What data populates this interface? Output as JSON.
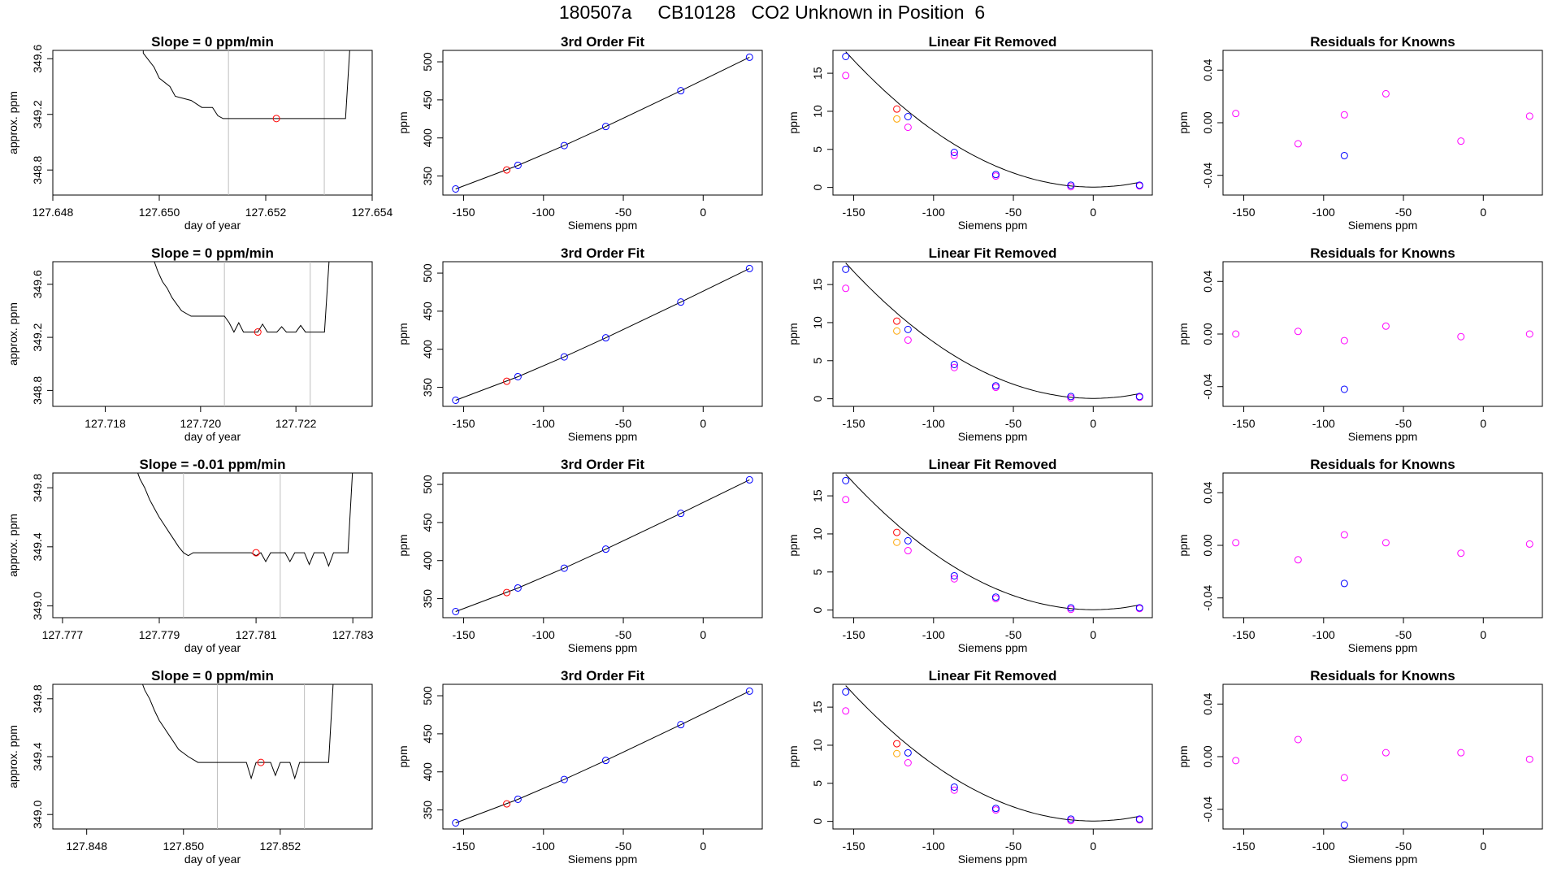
{
  "page": {
    "title": "180507a     CB10128   CO2 Unknown in Position  6"
  },
  "colors": {
    "blue": "#0000ff",
    "red": "#ff0000",
    "magenta": "#ff00ff",
    "orange": "#ffa500",
    "gray": "#bebebe",
    "black": "#000000"
  },
  "chart_data": [
    {
      "type": "line",
      "title": "Slope =  0  ppm/min",
      "xlabel": "day of year",
      "ylabel": "approx. ppm",
      "xlim": [
        127.648,
        127.654
      ],
      "ylim": [
        348.62,
        349.66
      ],
      "xticks": [
        "127.648",
        "127.650",
        "127.652",
        "127.654"
      ],
      "yticks": [
        "348.8",
        "349.2",
        "349.6"
      ],
      "vlines": [
        127.6513,
        127.6531
      ],
      "marker": {
        "x": 127.6522,
        "y": 349.17
      },
      "trace": [
        [
          127.6497,
          349.72
        ],
        [
          127.6497,
          349.64
        ],
        [
          127.6499,
          349.54
        ],
        [
          127.65,
          349.46
        ],
        [
          127.6502,
          349.4
        ],
        [
          127.6503,
          349.33
        ],
        [
          127.6506,
          349.3
        ],
        [
          127.6508,
          349.25
        ],
        [
          127.651,
          349.25
        ],
        [
          127.6511,
          349.19
        ],
        [
          127.6512,
          349.17
        ],
        [
          127.6535,
          349.17
        ],
        [
          127.6536,
          349.8
        ]
      ]
    },
    {
      "type": "scatter",
      "title": "3rd Order Fit",
      "xlabel": "Siemens ppm",
      "ylabel": "ppm",
      "xlim": [
        -163,
        37
      ],
      "ylim": [
        325,
        515
      ],
      "xticks": [
        "-150",
        "-100",
        "-50",
        "0"
      ],
      "yticks": [
        "350",
        "400",
        "450",
        "500"
      ],
      "points": [
        [
          -155,
          333
        ],
        [
          -116,
          364
        ],
        [
          -87,
          390
        ],
        [
          -61,
          415
        ],
        [
          -14,
          462
        ],
        [
          29,
          506
        ]
      ],
      "red_point": [
        -123,
        358
      ]
    },
    {
      "type": "scatter",
      "title": "Linear Fit Removed",
      "xlabel": "Siemens ppm",
      "ylabel": "ppm",
      "xlim": [
        -163,
        37
      ],
      "ylim": [
        -1,
        18
      ],
      "xticks": [
        "-150",
        "-100",
        "-50",
        "0"
      ],
      "yticks": [
        "0",
        "5",
        "10",
        "15"
      ],
      "blue": [
        [
          -155,
          17.2
        ],
        [
          -116,
          9.3
        ],
        [
          -87,
          4.6
        ],
        [
          -61,
          1.7
        ],
        [
          -14,
          0.3
        ],
        [
          29,
          0.3
        ]
      ],
      "magenta": [
        [
          -155,
          14.7
        ],
        [
          -116,
          7.9
        ],
        [
          -87,
          4.2
        ],
        [
          -61,
          1.5
        ],
        [
          -14,
          0.1
        ],
        [
          29,
          0.2
        ]
      ],
      "red": [
        [
          -123,
          10.3
        ]
      ],
      "orange": [
        [
          -123,
          9.0
        ]
      ]
    },
    {
      "type": "scatter",
      "title": "Residuals for Knowns",
      "xlabel": "Siemens ppm",
      "ylabel": "ppm",
      "xlim": [
        -163,
        37
      ],
      "ylim": [
        -0.055,
        0.055
      ],
      "xticks": [
        "-150",
        "-100",
        "-50",
        "0"
      ],
      "yticks": [
        "-0.04",
        "0.00",
        "0.04"
      ],
      "magenta": [
        [
          -155,
          0.007
        ],
        [
          -116,
          -0.016
        ],
        [
          -87,
          0.006
        ],
        [
          -61,
          0.022
        ],
        [
          -14,
          -0.014
        ],
        [
          29,
          0.005
        ]
      ],
      "blue": [
        [
          -87,
          -0.025
        ]
      ]
    },
    {
      "type": "line",
      "title": "Slope =  0  ppm/min",
      "xlabel": "day of year",
      "ylabel": "approx. ppm",
      "xlim": [
        127.7169,
        127.7236
      ],
      "ylim": [
        348.68,
        349.77
      ],
      "xticks": [
        "127.718",
        "127.720",
        "127.722"
      ],
      "yticks": [
        "348.8",
        "349.2",
        "349.6"
      ],
      "vlines": [
        127.7205,
        127.7223
      ],
      "marker": {
        "x": 127.7212,
        "y": 349.24
      },
      "trace": [
        [
          127.719,
          349.8
        ],
        [
          127.7191,
          349.7
        ],
        [
          127.7192,
          349.62
        ],
        [
          127.7193,
          349.57
        ],
        [
          127.7194,
          349.5
        ],
        [
          127.7195,
          349.45
        ],
        [
          127.7196,
          349.4
        ],
        [
          127.7198,
          349.36
        ],
        [
          127.7205,
          349.36
        ],
        [
          127.7206,
          349.31
        ],
        [
          127.7207,
          349.24
        ],
        [
          127.7208,
          349.31
        ],
        [
          127.7209,
          349.24
        ],
        [
          127.7212,
          349.24
        ],
        [
          127.7213,
          349.3
        ],
        [
          127.7214,
          349.24
        ],
        [
          127.7216,
          349.24
        ],
        [
          127.7217,
          349.28
        ],
        [
          127.7218,
          349.24
        ],
        [
          127.722,
          349.24
        ],
        [
          127.7221,
          349.29
        ],
        [
          127.7222,
          349.24
        ],
        [
          127.7226,
          349.24
        ],
        [
          127.7227,
          349.8
        ]
      ]
    },
    {
      "type": "scatter",
      "title": "3rd Order Fit",
      "xlabel": "Siemens ppm",
      "ylabel": "ppm",
      "xlim": [
        -163,
        37
      ],
      "ylim": [
        325,
        515
      ],
      "xticks": [
        "-150",
        "-100",
        "-50",
        "0"
      ],
      "yticks": [
        "350",
        "400",
        "450",
        "500"
      ],
      "points": [
        [
          -155,
          333
        ],
        [
          -116,
          364
        ],
        [
          -87,
          390
        ],
        [
          -61,
          415
        ],
        [
          -14,
          462
        ],
        [
          29,
          506
        ]
      ],
      "red_point": [
        -123,
        358
      ]
    },
    {
      "type": "scatter",
      "title": "Linear Fit Removed",
      "xlabel": "Siemens ppm",
      "ylabel": "ppm",
      "xlim": [
        -163,
        37
      ],
      "ylim": [
        -1,
        18
      ],
      "xticks": [
        "-150",
        "-100",
        "-50",
        "0"
      ],
      "yticks": [
        "0",
        "5",
        "10",
        "15"
      ],
      "blue": [
        [
          -155,
          17.0
        ],
        [
          -116,
          9.1
        ],
        [
          -87,
          4.5
        ],
        [
          -61,
          1.7
        ],
        [
          -14,
          0.3
        ],
        [
          29,
          0.3
        ]
      ],
      "magenta": [
        [
          -155,
          14.5
        ],
        [
          -116,
          7.7
        ],
        [
          -87,
          4.1
        ],
        [
          -61,
          1.5
        ],
        [
          -14,
          0.1
        ],
        [
          29,
          0.2
        ]
      ],
      "red": [
        [
          -123,
          10.2
        ]
      ],
      "orange": [
        [
          -123,
          8.9
        ]
      ]
    },
    {
      "type": "scatter",
      "title": "Residuals for Knowns",
      "xlabel": "Siemens ppm",
      "ylabel": "ppm",
      "xlim": [
        -163,
        37
      ],
      "ylim": [
        -0.055,
        0.055
      ],
      "xticks": [
        "-150",
        "-100",
        "-50",
        "0"
      ],
      "yticks": [
        "-0.04",
        "0.00",
        "0.04"
      ],
      "magenta": [
        [
          -155,
          0.0
        ],
        [
          -116,
          0.002
        ],
        [
          -87,
          -0.005
        ],
        [
          -61,
          0.006
        ],
        [
          -14,
          -0.002
        ],
        [
          29,
          0.0
        ]
      ],
      "blue": [
        [
          -87,
          -0.042
        ]
      ]
    },
    {
      "type": "line",
      "title": "Slope =  -0.01  ppm/min",
      "xlabel": "day of year",
      "ylabel": "approx. ppm",
      "xlim": [
        127.7768,
        127.7834
      ],
      "ylim": [
        348.92,
        349.9
      ],
      "xticks": [
        "127.777",
        "127.779",
        "127.781",
        "127.783"
      ],
      "yticks": [
        "349.0",
        "349.4",
        "349.8"
      ],
      "vlines": [
        127.7795,
        127.7815
      ],
      "marker": {
        "x": 127.781,
        "y": 349.36
      },
      "trace": [
        [
          127.7785,
          349.95
        ],
        [
          127.7786,
          349.86
        ],
        [
          127.7787,
          349.8
        ],
        [
          127.7788,
          349.72
        ],
        [
          127.7789,
          349.66
        ],
        [
          127.779,
          349.6
        ],
        [
          127.7791,
          349.55
        ],
        [
          127.7792,
          349.5
        ],
        [
          127.7793,
          349.45
        ],
        [
          127.7794,
          349.4
        ],
        [
          127.7795,
          349.36
        ],
        [
          127.7796,
          349.34
        ],
        [
          127.7797,
          349.36
        ],
        [
          127.7809,
          349.36
        ],
        [
          127.781,
          349.34
        ],
        [
          127.7811,
          349.36
        ],
        [
          127.7812,
          349.3
        ],
        [
          127.7813,
          349.36
        ],
        [
          127.7816,
          349.36
        ],
        [
          127.7817,
          349.3
        ],
        [
          127.7818,
          349.36
        ],
        [
          127.782,
          349.36
        ],
        [
          127.7821,
          349.28
        ],
        [
          127.7822,
          349.36
        ],
        [
          127.7824,
          349.36
        ],
        [
          127.7825,
          349.27
        ],
        [
          127.7826,
          349.36
        ],
        [
          127.7829,
          349.36
        ],
        [
          127.783,
          349.95
        ]
      ]
    },
    {
      "type": "scatter",
      "title": "3rd Order Fit",
      "xlabel": "Siemens ppm",
      "ylabel": "ppm",
      "xlim": [
        -163,
        37
      ],
      "ylim": [
        325,
        515
      ],
      "xticks": [
        "-150",
        "-100",
        "-50",
        "0"
      ],
      "yticks": [
        "350",
        "400",
        "450",
        "500"
      ],
      "points": [
        [
          -155,
          333
        ],
        [
          -116,
          364
        ],
        [
          -87,
          390
        ],
        [
          -61,
          415
        ],
        [
          -14,
          462
        ],
        [
          29,
          506
        ]
      ],
      "red_point": [
        -123,
        358
      ]
    },
    {
      "type": "scatter",
      "title": "Linear Fit Removed",
      "xlabel": "Siemens ppm",
      "ylabel": "ppm",
      "xlim": [
        -163,
        37
      ],
      "ylim": [
        -1,
        18
      ],
      "xticks": [
        "-150",
        "-100",
        "-50",
        "0"
      ],
      "yticks": [
        "0",
        "5",
        "10",
        "15"
      ],
      "blue": [
        [
          -155,
          17.0
        ],
        [
          -116,
          9.1
        ],
        [
          -87,
          4.5
        ],
        [
          -61,
          1.7
        ],
        [
          -14,
          0.3
        ],
        [
          29,
          0.3
        ]
      ],
      "magenta": [
        [
          -155,
          14.5
        ],
        [
          -116,
          7.8
        ],
        [
          -87,
          4.1
        ],
        [
          -61,
          1.5
        ],
        [
          -14,
          0.1
        ],
        [
          29,
          0.2
        ]
      ],
      "red": [
        [
          -123,
          10.2
        ]
      ],
      "orange": [
        [
          -123,
          8.9
        ]
      ]
    },
    {
      "type": "scatter",
      "title": "Residuals for Knowns",
      "xlabel": "Siemens ppm",
      "ylabel": "ppm",
      "xlim": [
        -163,
        37
      ],
      "ylim": [
        -0.055,
        0.055
      ],
      "xticks": [
        "-150",
        "-100",
        "-50",
        "0"
      ],
      "yticks": [
        "-0.04",
        "0.00",
        "0.04"
      ],
      "magenta": [
        [
          -155,
          0.002
        ],
        [
          -116,
          -0.011
        ],
        [
          -87,
          0.008
        ],
        [
          -61,
          0.002
        ],
        [
          -14,
          -0.006
        ],
        [
          29,
          0.001
        ]
      ],
      "blue": [
        [
          -87,
          -0.029
        ]
      ]
    },
    {
      "type": "line",
      "title": "Slope =  0  ppm/min",
      "xlabel": "day of year",
      "ylabel": "approx. ppm",
      "xlim": [
        127.8473,
        127.8539
      ],
      "ylim": [
        348.9,
        349.9
      ],
      "xticks": [
        "127.848",
        "127.850",
        "127.852"
      ],
      "yticks": [
        "349.0",
        "349.4",
        "349.8"
      ],
      "vlines": [
        127.8507,
        127.8525
      ],
      "marker": {
        "x": 127.8516,
        "y": 349.36
      },
      "trace": [
        [
          127.8491,
          349.95
        ],
        [
          127.8492,
          349.86
        ],
        [
          127.8493,
          349.8
        ],
        [
          127.8494,
          349.72
        ],
        [
          127.8495,
          349.65
        ],
        [
          127.8496,
          349.6
        ],
        [
          127.8497,
          349.55
        ],
        [
          127.8498,
          349.5
        ],
        [
          127.8499,
          349.45
        ],
        [
          127.8501,
          349.4
        ],
        [
          127.8503,
          349.36
        ],
        [
          127.8513,
          349.36
        ],
        [
          127.8514,
          349.25
        ],
        [
          127.8515,
          349.36
        ],
        [
          127.8518,
          349.36
        ],
        [
          127.8519,
          349.27
        ],
        [
          127.852,
          349.36
        ],
        [
          127.8522,
          349.36
        ],
        [
          127.8523,
          349.25
        ],
        [
          127.8524,
          349.36
        ],
        [
          127.853,
          349.36
        ],
        [
          127.8531,
          349.95
        ]
      ]
    },
    {
      "type": "scatter",
      "title": "3rd Order Fit",
      "xlabel": "Siemens ppm",
      "ylabel": "ppm",
      "xlim": [
        -163,
        37
      ],
      "ylim": [
        325,
        515
      ],
      "xticks": [
        "-150",
        "-100",
        "-50",
        "0"
      ],
      "yticks": [
        "350",
        "400",
        "450",
        "500"
      ],
      "points": [
        [
          -155,
          333
        ],
        [
          -116,
          364
        ],
        [
          -87,
          390
        ],
        [
          -61,
          415
        ],
        [
          -14,
          462
        ],
        [
          29,
          506
        ]
      ],
      "red_point": [
        -123,
        358
      ]
    },
    {
      "type": "scatter",
      "title": "Linear Fit Removed",
      "xlabel": "Siemens ppm",
      "ylabel": "ppm",
      "xlim": [
        -163,
        37
      ],
      "ylim": [
        -1,
        18
      ],
      "xticks": [
        "-150",
        "-100",
        "-50",
        "0"
      ],
      "yticks": [
        "0",
        "5",
        "10",
        "15"
      ],
      "blue": [
        [
          -155,
          17.0
        ],
        [
          -116,
          9.0
        ],
        [
          -87,
          4.5
        ],
        [
          -61,
          1.7
        ],
        [
          -14,
          0.3
        ],
        [
          29,
          0.3
        ]
      ],
      "magenta": [
        [
          -155,
          14.5
        ],
        [
          -116,
          7.7
        ],
        [
          -87,
          4.1
        ],
        [
          -61,
          1.5
        ],
        [
          -14,
          0.1
        ],
        [
          29,
          0.2
        ]
      ],
      "red": [
        [
          -123,
          10.2
        ]
      ],
      "orange": [
        [
          -123,
          8.9
        ]
      ]
    },
    {
      "type": "scatter",
      "title": "Residuals for Knowns",
      "xlabel": "Siemens ppm",
      "ylabel": "ppm",
      "xlim": [
        -163,
        37
      ],
      "ylim": [
        -0.055,
        0.055
      ],
      "xticks": [
        "-150",
        "-100",
        "-50",
        "0"
      ],
      "yticks": [
        "-0.04",
        "0.00",
        "0.04"
      ],
      "magenta": [
        [
          -155,
          -0.003
        ],
        [
          -116,
          0.013
        ],
        [
          -87,
          -0.016
        ],
        [
          -61,
          0.003
        ],
        [
          -14,
          0.003
        ],
        [
          29,
          -0.002
        ]
      ],
      "blue": [
        [
          -87,
          -0.052
        ]
      ]
    }
  ]
}
